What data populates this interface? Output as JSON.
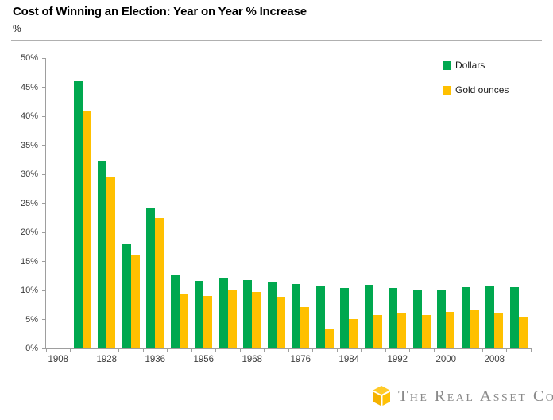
{
  "header": {
    "title": "Cost of Winning an Election: Year on Year % Increase",
    "unit": "%"
  },
  "chart_data": {
    "type": "bar",
    "title": "Cost of Winning an Election: Year on Year % Increase",
    "ylabel": "%",
    "xlabel": "",
    "ylim": [
      0,
      50
    ],
    "ytick_step": 5,
    "ytick_suffix": "%",
    "grid": false,
    "legend_position": "top-right",
    "axis_color": "#9e9e9e",
    "tick_label_color": "#3d3d3d",
    "categories": [
      "1908",
      "",
      "1928",
      "",
      "1936",
      "",
      "1956",
      "",
      "1968",
      "",
      "1976",
      "",
      "1984",
      "",
      "1992",
      "",
      "2000",
      "",
      "2008",
      ""
    ],
    "series": [
      {
        "name": "Dollars",
        "color": "#00a84f",
        "values": [
          null,
          46.0,
          32.3,
          18.0,
          24.2,
          12.6,
          11.7,
          12.1,
          11.8,
          11.5,
          11.1,
          10.8,
          10.4,
          11.0,
          10.4,
          10.0,
          10.0,
          10.5,
          10.7,
          10.6
        ]
      },
      {
        "name": "Gold ounces",
        "color": "#ffc000",
        "values": [
          null,
          41.0,
          29.5,
          16.0,
          22.4,
          9.5,
          9.1,
          10.2,
          9.7,
          8.9,
          7.1,
          3.3,
          5.1,
          5.8,
          6.0,
          5.7,
          6.3,
          6.6,
          6.2,
          5.4
        ]
      }
    ]
  },
  "footer": {
    "brand": "The Real Asset Co",
    "logo": "gold-cube-icon",
    "logo_colors": {
      "top_face": "#ffca28",
      "left_face": "#f5b200",
      "right_face": "#ffc107"
    },
    "text_color": "#8a8a8a"
  }
}
